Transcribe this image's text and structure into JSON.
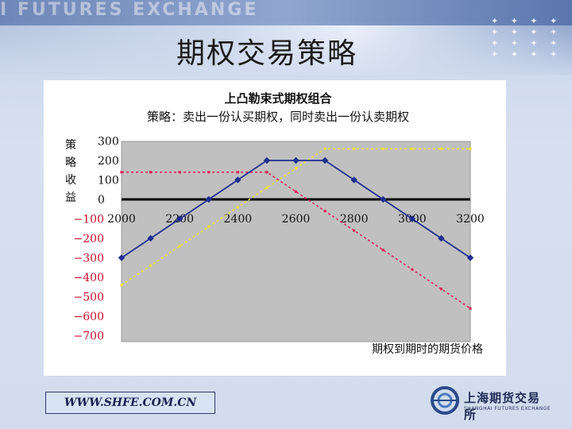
{
  "slide": {
    "watermark": "I FUTURES EXCHANGE",
    "title": "期权交易策略",
    "footer_url": "WWW.SHFE.COM.CN",
    "logo_name": "上海期货交易所",
    "logo_sub": "SHANGHAI FUTURES EXCHANGE",
    "logo_icon": "shfe-emblem-icon",
    "colors": {
      "plot_bg": "#c0c0c0",
      "strategy_line": "#1f2f8f",
      "call_line": "#e8e030",
      "put_line": "#e0205a",
      "negative_tick": "#c8102e"
    }
  },
  "chart_data": {
    "type": "line",
    "title": "上凸勒束式期权组合",
    "subtitle": "策略：卖出一份认买期权，同时卖出一份认卖期权",
    "ylabel": "策略收益",
    "xlabel": "期权到期时的期货价格",
    "xlim": [
      2000,
      3200
    ],
    "ylim": [
      -700,
      300
    ],
    "x_ticks": [
      "2000",
      "2200",
      "2400",
      "2600",
      "2800",
      "3000",
      "3200"
    ],
    "y_ticks_positive": [
      "300",
      "200",
      "100",
      "0"
    ],
    "y_ticks_negative": [
      "−100",
      "−200",
      "−300",
      "−400",
      "−500",
      "−600",
      "−700"
    ],
    "y_tick_values_positive": [
      300,
      200,
      100,
      0
    ],
    "y_tick_values_negative": [
      -100,
      -200,
      -300,
      -400,
      -500,
      -600,
      -700
    ],
    "grid": false,
    "series": [
      {
        "style": "solid-diamond",
        "color": "#1f2f8f",
        "x": [
          2000,
          2100,
          2200,
          2300,
          2400,
          2500,
          2600,
          2700,
          2800,
          2900,
          3000,
          3100,
          3200
        ],
        "y": [
          -300,
          -200,
          -100,
          0,
          100,
          200,
          200,
          200,
          100,
          0,
          -100,
          -200,
          -300
        ]
      },
      {
        "style": "dotted",
        "color": "#e8e030",
        "x": [
          2000,
          2100,
          2200,
          2300,
          2400,
          2500,
          2600,
          2700,
          2800,
          2900,
          3000,
          3100,
          3200
        ],
        "y": [
          -440,
          -340,
          -240,
          -140,
          -40,
          60,
          160,
          260,
          260,
          260,
          260,
          260,
          260
        ]
      },
      {
        "style": "dotted",
        "color": "#e0205a",
        "x": [
          2000,
          2100,
          2200,
          2300,
          2400,
          2500,
          2600,
          2700,
          2800,
          2900,
          3000,
          3100,
          3200
        ],
        "y": [
          140,
          140,
          140,
          140,
          140,
          140,
          40,
          -60,
          -160,
          -260,
          -360,
          -460,
          -560
        ]
      }
    ]
  }
}
